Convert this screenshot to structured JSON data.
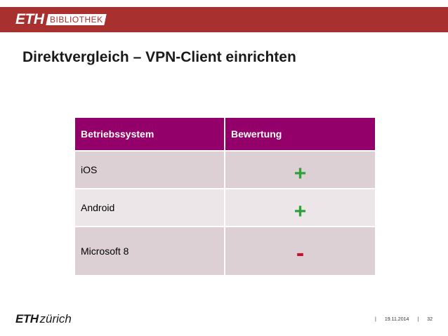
{
  "header": {
    "logo_eth": "ETH",
    "logo_bibliothek": "BIBLIOTHEK",
    "bar_color": "#a8302e"
  },
  "slide": {
    "title": "Direktvergleich – VPN-Client einrichten"
  },
  "table": {
    "headers": [
      "Betriebssystem",
      "Bewertung"
    ],
    "header_color": "#930069",
    "rows": [
      {
        "os": "iOS",
        "rating": "+"
      },
      {
        "os": "Android",
        "rating": "+"
      },
      {
        "os": "Microsoft 8",
        "rating": "-"
      }
    ],
    "positive_color": "#2fa13a",
    "negative_color": "#c8102e"
  },
  "footer": {
    "logo_eth": "ETH",
    "logo_zurich": "zürich",
    "separator": "|",
    "date": "19.11.2014",
    "page": "32"
  }
}
